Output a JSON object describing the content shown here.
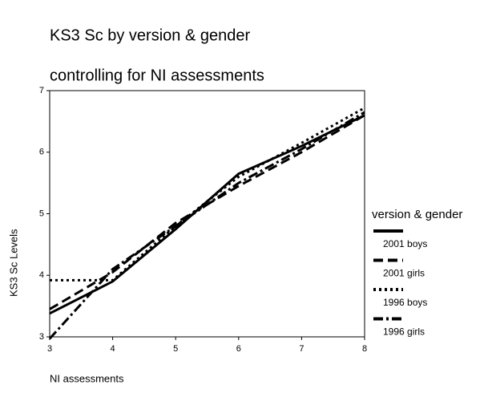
{
  "chart_data": {
    "type": "line",
    "title": "KS3 Sc by version & gender",
    "subtitle": "controlling for NI assessments",
    "x_label": "NI assessments",
    "y_label": "KS3 Sc Levels",
    "legend_title": "version & gender",
    "x": [
      3,
      4,
      5,
      6,
      7,
      8
    ],
    "xlim": [
      3,
      8
    ],
    "xticks": [
      3,
      4,
      5,
      6,
      7,
      8
    ],
    "ylim": [
      3,
      7
    ],
    "yticks": [
      3,
      4,
      5,
      6,
      7
    ],
    "grid": false,
    "legend": "right",
    "series": [
      {
        "name": "2001 boys",
        "color": "#000000",
        "dash": "solid",
        "values": [
          3.38,
          3.9,
          4.75,
          5.65,
          6.1,
          6.6
        ]
      },
      {
        "name": "2001 girls",
        "color": "#000000",
        "dash": "dashed",
        "values": [
          3.45,
          4.05,
          4.85,
          5.45,
          6.0,
          6.6
        ]
      },
      {
        "name": "1996 boys",
        "color": "#000000",
        "dash": "dotted",
        "values": [
          3.92,
          3.92,
          4.8,
          5.6,
          6.15,
          6.72
        ]
      },
      {
        "name": "1996 girls",
        "color": "#000000",
        "dash": "dashdot",
        "values": [
          2.97,
          4.1,
          4.8,
          5.5,
          6.05,
          6.65
        ]
      }
    ]
  }
}
